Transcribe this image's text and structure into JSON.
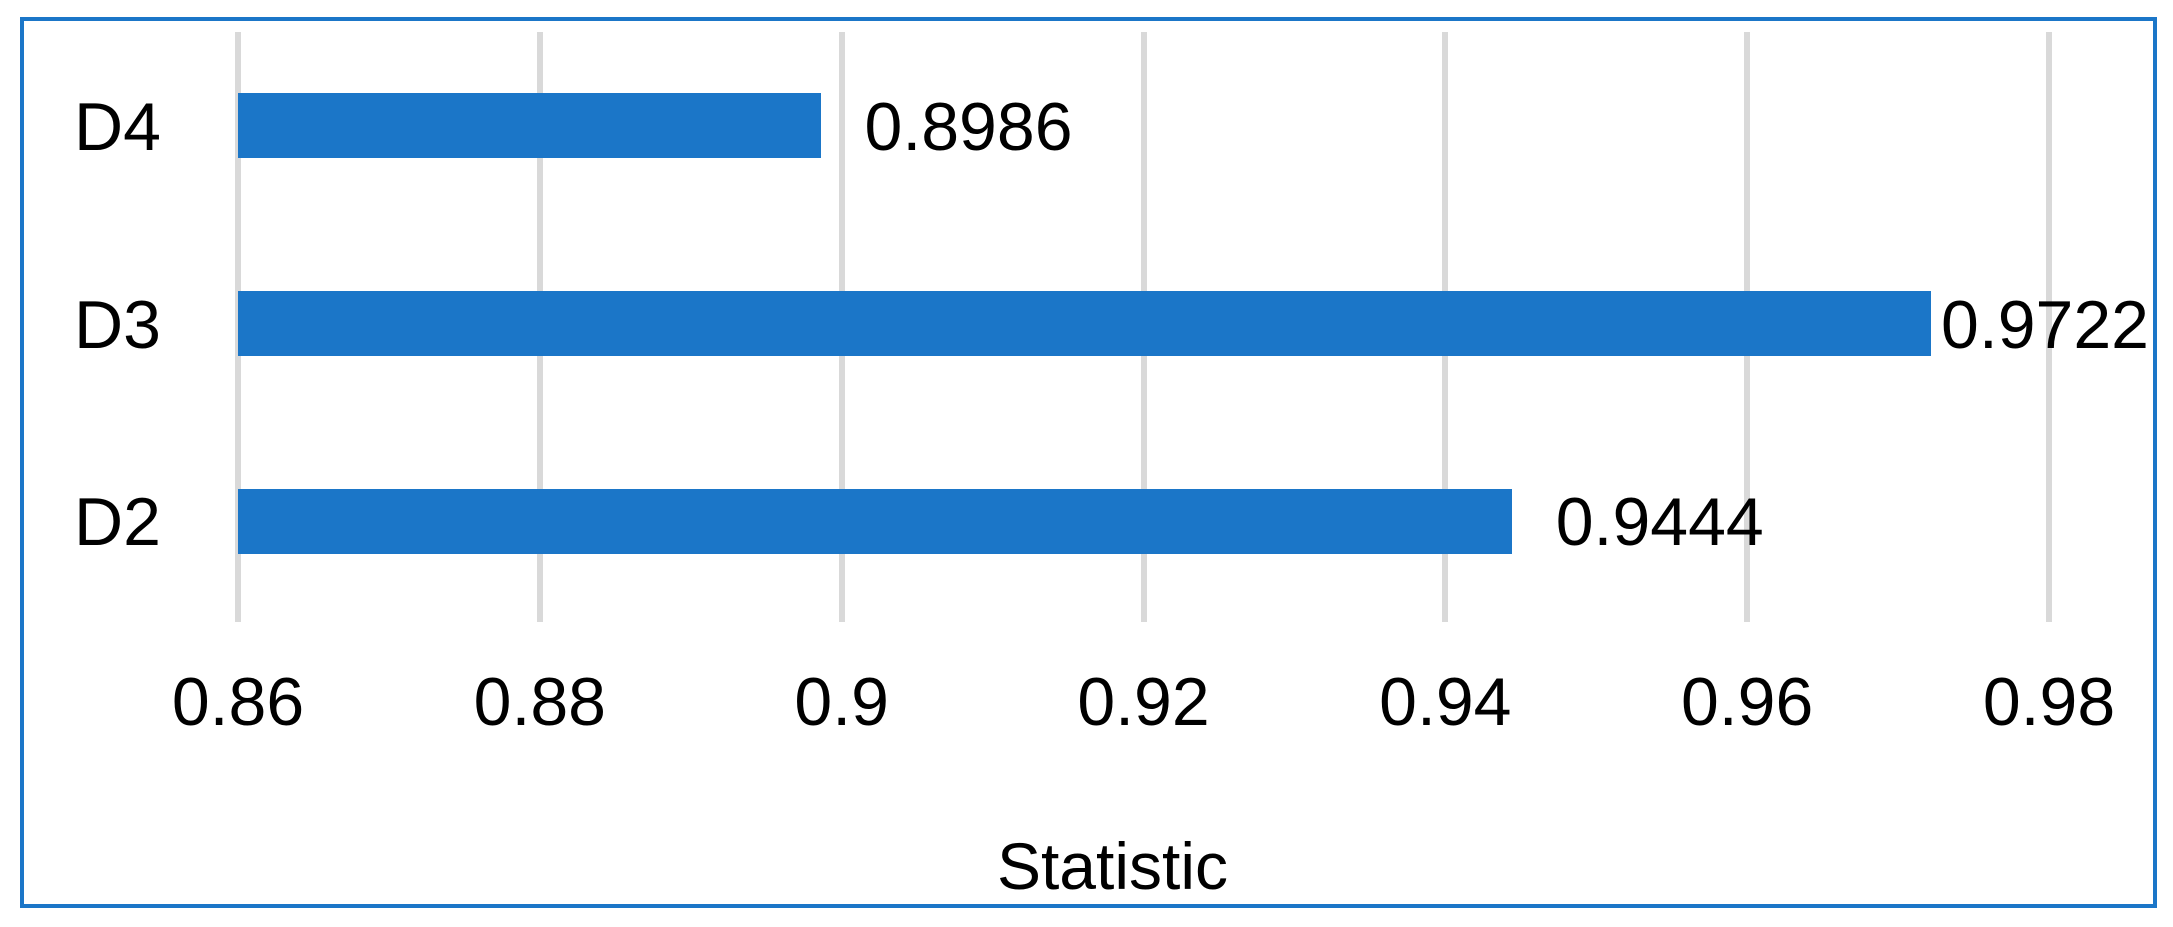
{
  "chart_data": {
    "type": "bar",
    "orientation": "horizontal",
    "title": "",
    "xlabel": "Statistic",
    "ylabel": "",
    "categories": [
      "D4",
      "D3",
      "D2"
    ],
    "series": [
      {
        "name": "Statistic",
        "values": [
          0.8986,
          0.9722,
          0.9444
        ],
        "data_labels": [
          "0.8986",
          "0.9722",
          "0.9444"
        ]
      }
    ],
    "xlim": [
      0.86,
      0.98
    ],
    "xticks": [
      0.86,
      0.88,
      0.9,
      0.92,
      0.94,
      0.96,
      0.98
    ],
    "xtick_labels": [
      "0.86",
      "0.88",
      "0.9",
      "0.92",
      "0.94",
      "0.96",
      "0.98"
    ],
    "grid": "vertical-major",
    "legend": "none",
    "colors": {
      "bar": "#1B76C8",
      "frame_border": "#1B76C8",
      "gridline": "#D9D9D9",
      "text": "#000000",
      "background": "#FFFFFF"
    }
  }
}
